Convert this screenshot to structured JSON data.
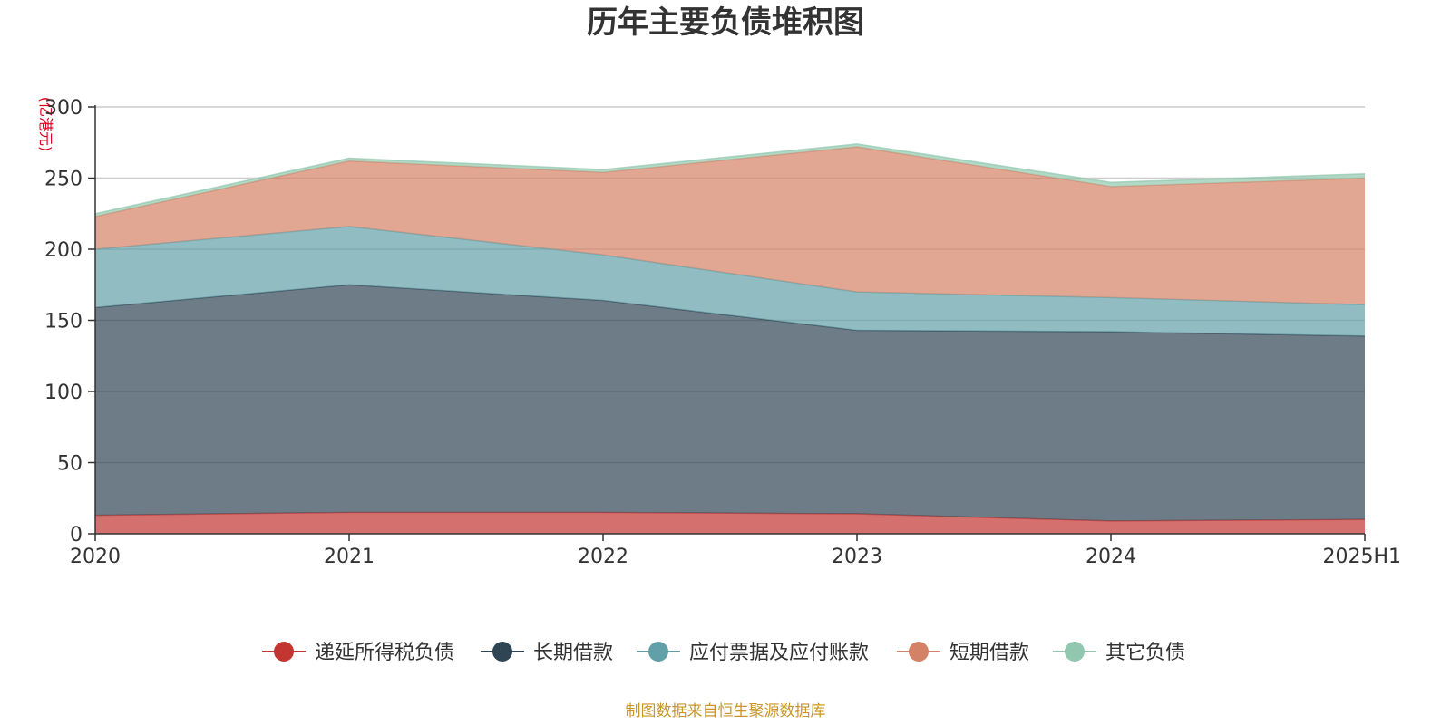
{
  "chart_data": {
    "type": "area",
    "stacked": true,
    "title": "历年主要负债堆积图",
    "ylabel": "(亿港元)",
    "xlabel": "",
    "categories": [
      "2020",
      "2021",
      "2022",
      "2023",
      "2024",
      "2025H1"
    ],
    "ylim": [
      0,
      300
    ],
    "yticks": [
      "0",
      "50",
      "100",
      "150",
      "200",
      "250",
      "300"
    ],
    "grid": true,
    "legend_position": "bottom",
    "series": [
      {
        "name": "递延所得税负债",
        "color": "#c23531",
        "values": [
          13,
          15,
          15,
          14,
          9,
          10
        ]
      },
      {
        "name": "长期借款",
        "color": "#2f4554",
        "values": [
          146,
          160,
          149,
          129,
          133,
          129
        ]
      },
      {
        "name": "应付票据及应付账款",
        "color": "#61a0a8",
        "values": [
          41,
          41,
          32,
          27,
          24,
          22
        ]
      },
      {
        "name": "短期借款",
        "color": "#d48265",
        "values": [
          23,
          46,
          58,
          102,
          78,
          89
        ]
      },
      {
        "name": "其它负债",
        "color": "#91c7ae",
        "values": [
          2,
          2,
          2,
          2,
          3,
          3
        ]
      }
    ]
  },
  "footer": {
    "source": "制图数据来自恒生聚源数据库",
    "source_color": "#c8962a",
    "unit_color": "#e3001b"
  }
}
